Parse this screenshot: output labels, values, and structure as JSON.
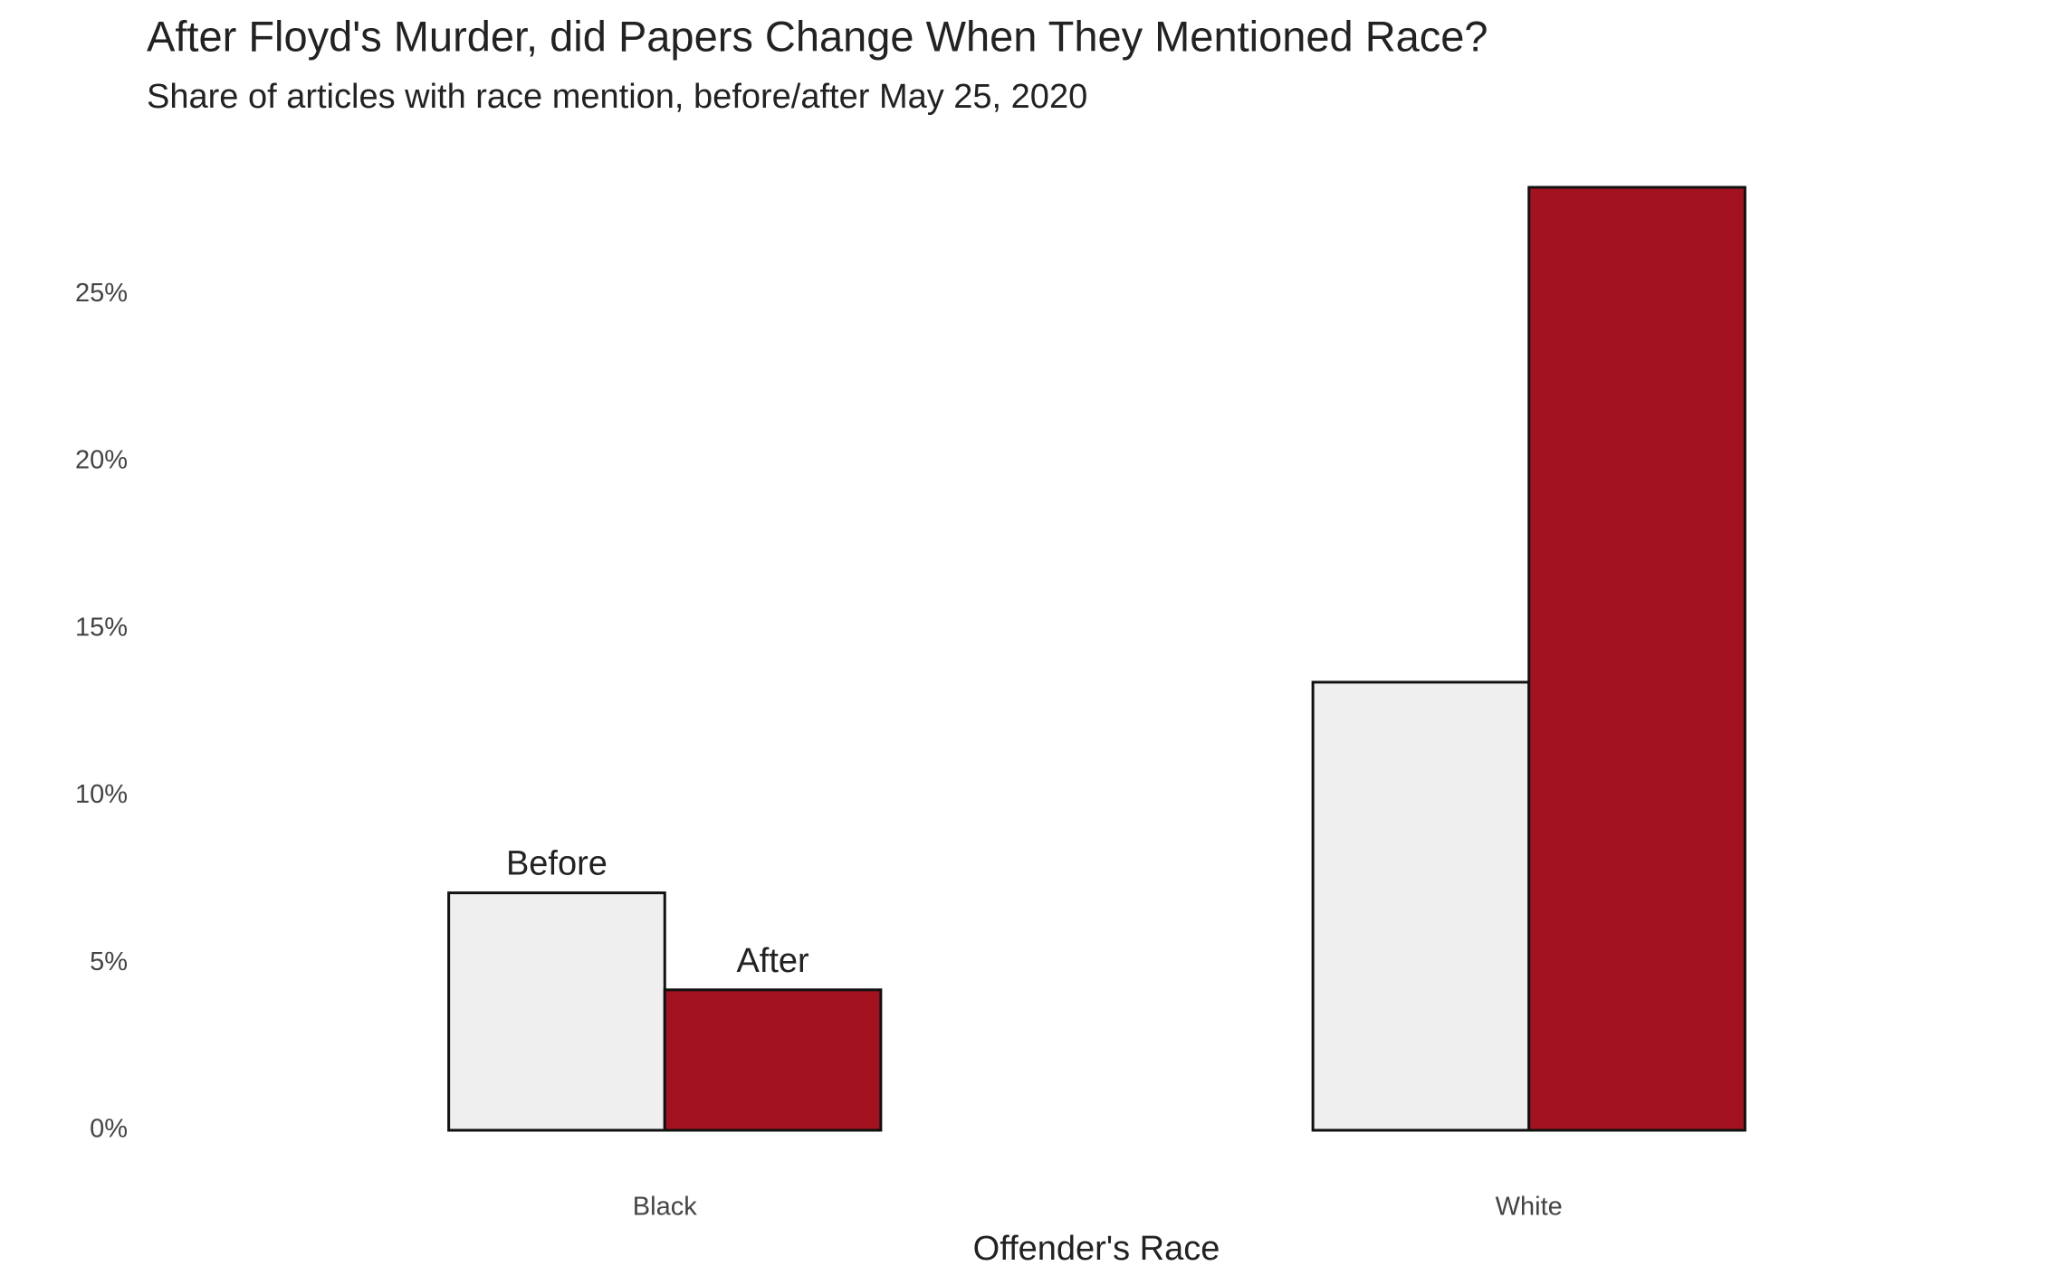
{
  "chart_data": {
    "type": "bar",
    "title": "After Floyd's Murder, did Papers Change When They Mentioned Race?",
    "subtitle": "Share of articles with race mention, before/after May 25, 2020",
    "x_label": "Offender's Race",
    "categories": [
      "Black",
      "White"
    ],
    "series": [
      {
        "name": "Before",
        "color": "#efefef",
        "values": [
          7.1,
          13.4
        ]
      },
      {
        "name": "After",
        "color": "#a3121f",
        "values": [
          4.2,
          28.2
        ]
      }
    ],
    "ylim": [
      0,
      28.2
    ],
    "yticks": [
      {
        "value": 0,
        "label": "0%"
      },
      {
        "value": 5,
        "label": "5%"
      },
      {
        "value": 10,
        "label": "10%"
      },
      {
        "value": 15,
        "label": "15%"
      },
      {
        "value": 20,
        "label": "20%"
      },
      {
        "value": 25,
        "label": "25%"
      }
    ],
    "grid": false
  }
}
